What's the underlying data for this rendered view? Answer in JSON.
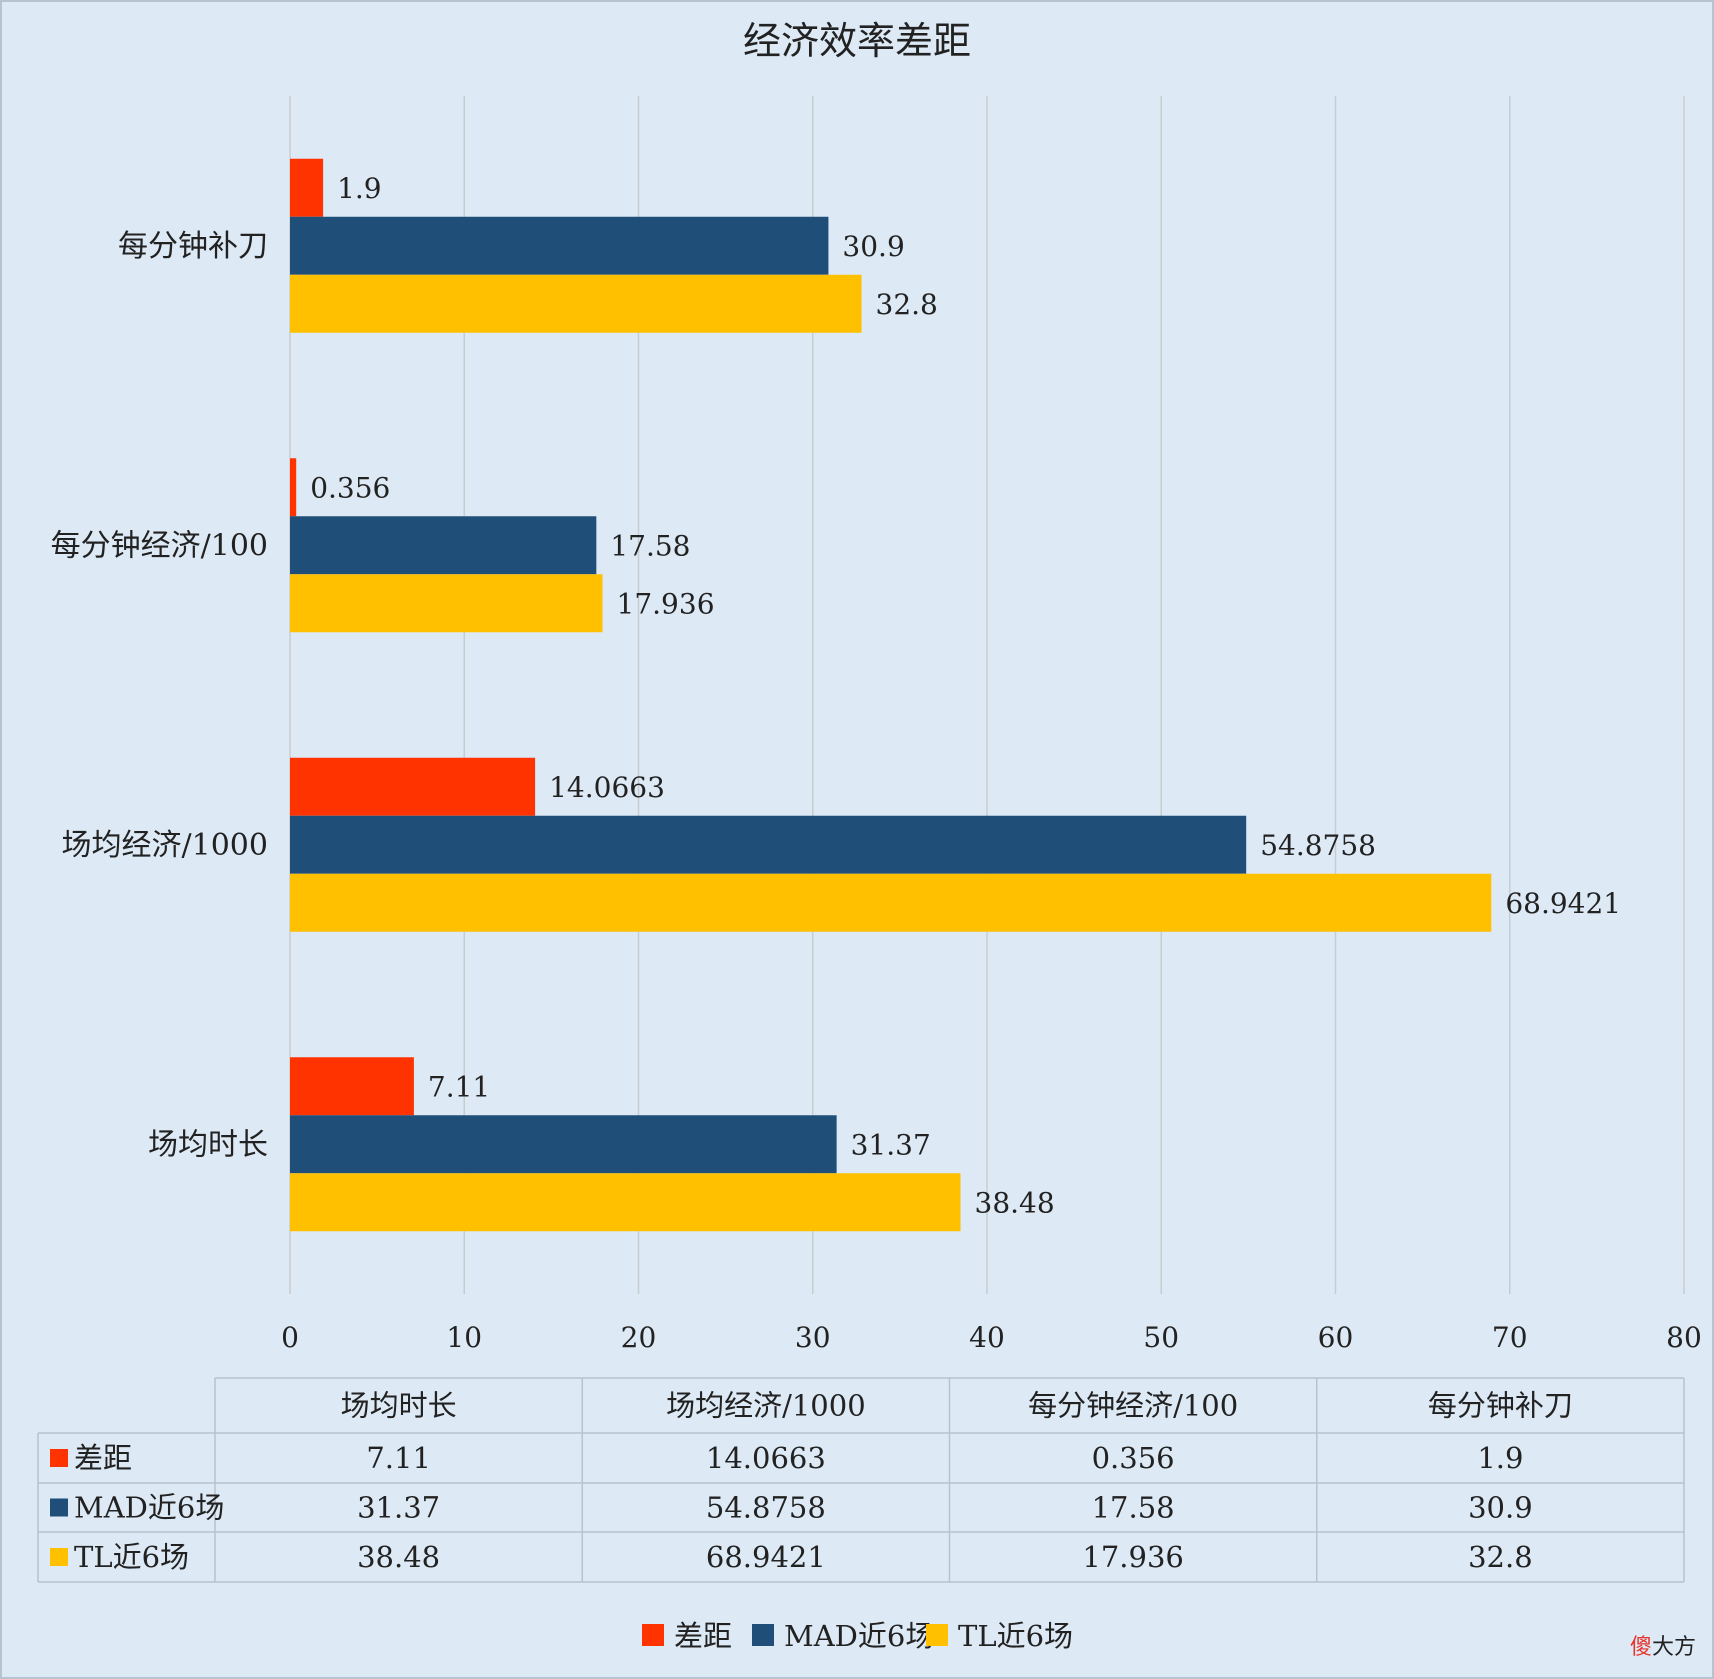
{
  "chart_data": {
    "type": "bar",
    "orientation": "horizontal",
    "title": "经济效率差距",
    "categories": [
      "场均时长",
      "场均经济/1000",
      "每分钟经济/100",
      "每分钟补刀"
    ],
    "series": [
      {
        "name": "差距",
        "color": "#ff3300",
        "values": [
          7.11,
          14.0663,
          0.356,
          1.9
        ],
        "labels": [
          "7.11",
          "14.0663",
          "0.356",
          "1.9"
        ]
      },
      {
        "name": "MAD近6场",
        "color": "#1f4e79",
        "values": [
          31.37,
          54.8758,
          17.58,
          30.9
        ],
        "labels": [
          "31.37",
          "54.8758",
          "17.58",
          "30.9"
        ]
      },
      {
        "name": "TL近6场",
        "color": "#ffc000",
        "values": [
          38.48,
          68.9421,
          17.936,
          32.8
        ],
        "labels": [
          "38.48",
          "68.9421",
          "17.936",
          "32.8"
        ]
      }
    ],
    "xlim": [
      0,
      80
    ],
    "xticks": [
      0,
      10,
      20,
      30,
      40,
      50,
      60,
      70,
      80
    ],
    "grid": true,
    "data_table": true,
    "legend_position": "bottom"
  },
  "watermark": {
    "part1": "傻",
    "part2": "大方"
  }
}
